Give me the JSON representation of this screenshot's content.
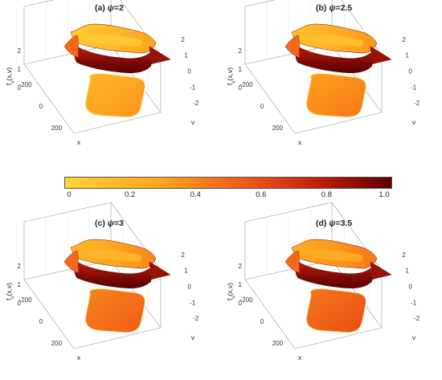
{
  "chart_data": [
    {
      "type": "surface3d",
      "panel_label": "(a) ",
      "title_symbol": "ψ",
      "title_value": "=2",
      "zlabel": "f_{u}(x,v)",
      "xlabel": "x",
      "ylabel": "v",
      "x_ticks": [
        "-200",
        "0",
        "200"
      ],
      "y_ticks": [
        "2",
        "1",
        "0",
        "-1",
        "-2"
      ],
      "z_ticks": [
        "0",
        "1",
        "2"
      ],
      "upper_sheet_tint": 0.05,
      "lower_mass_tint": 0.25
    },
    {
      "type": "surface3d",
      "panel_label": "(b) ",
      "title_symbol": "ψ",
      "title_value": "=2.5",
      "zlabel": "f_{u}(x,v)",
      "xlabel": "x",
      "ylabel": "v",
      "x_ticks": [
        "-200",
        "0",
        "200"
      ],
      "y_ticks": [
        "2",
        "1",
        "0",
        "-1",
        "-2"
      ],
      "z_ticks": [
        "0",
        "1",
        "2"
      ],
      "upper_sheet_tint": 0.1,
      "lower_mass_tint": 0.35
    },
    {
      "type": "surface3d",
      "panel_label": "(c) ",
      "title_symbol": "ψ",
      "title_value": "=3",
      "zlabel": "f_{u}(x,v)",
      "xlabel": "x",
      "ylabel": "v",
      "x_ticks": [
        "-200",
        "0",
        "200"
      ],
      "y_ticks": [
        "2",
        "1",
        "0",
        "-1",
        "-2"
      ],
      "z_ticks": [
        "0",
        "1",
        "2"
      ],
      "upper_sheet_tint": 0.15,
      "lower_mass_tint": 0.45
    },
    {
      "type": "surface3d",
      "panel_label": "(d) ",
      "title_symbol": "ψ",
      "title_value": "=3.5",
      "zlabel": "f_{u}(x,v)",
      "xlabel": "x",
      "ylabel": "v",
      "x_ticks": [
        "-200",
        "0",
        "200"
      ],
      "y_ticks": [
        "2",
        "1",
        "0",
        "-1",
        "-2"
      ],
      "z_ticks": [
        "0",
        "1",
        "2"
      ],
      "upper_sheet_tint": 0.2,
      "lower_mass_tint": 0.5
    }
  ],
  "colorbar": {
    "ticks": [
      "0",
      "0.2",
      "0.4",
      "0.6",
      "0.8",
      "1.0"
    ],
    "range": [
      0,
      1
    ],
    "colors": [
      "#ffd43a",
      "#ffa21c",
      "#f05a18",
      "#c41c0a",
      "#5a0000"
    ]
  }
}
